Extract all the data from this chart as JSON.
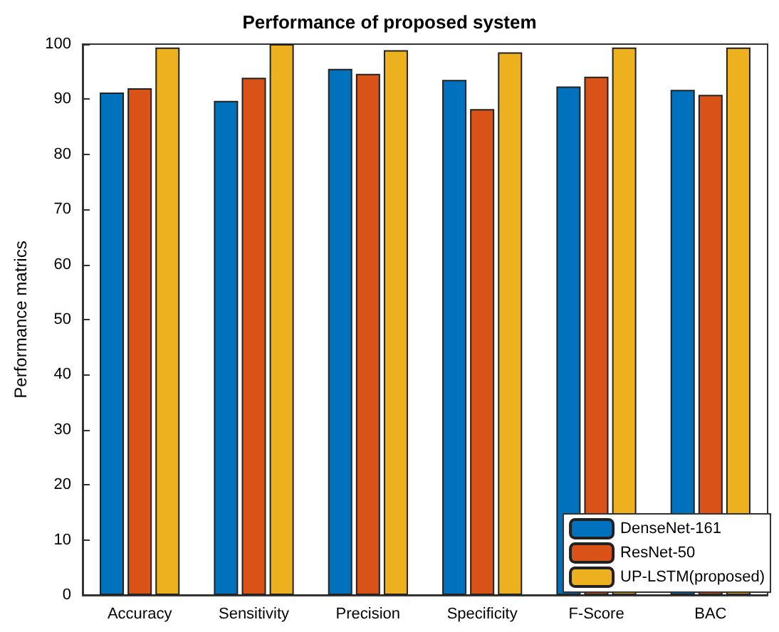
{
  "chart_data": {
    "type": "bar",
    "title": "Performance of proposed system",
    "ylabel": "Performance matrics",
    "categories": [
      "Accuracy",
      "Sensitivity",
      "Precision",
      "Specificity",
      "F-Score",
      "BAC"
    ],
    "series": [
      {
        "name": "DenseNet-161",
        "color": "#0072bd",
        "values": [
          91.2,
          89.7,
          95.5,
          93.5,
          92.3,
          91.7
        ]
      },
      {
        "name": "ResNet-50",
        "color": "#d95319",
        "values": [
          92.0,
          93.9,
          94.6,
          88.2,
          94.1,
          90.8
        ]
      },
      {
        "name": "UP-LSTM(proposed)",
        "color": "#edb120",
        "values": [
          99.4,
          100,
          98.9,
          98.5,
          99.4,
          99.4
        ]
      }
    ],
    "ylim": [
      0,
      100
    ],
    "yticks": [
      0,
      10,
      20,
      30,
      40,
      50,
      60,
      70,
      80,
      90,
      100
    ],
    "grid": false,
    "legend": "bottom right"
  }
}
